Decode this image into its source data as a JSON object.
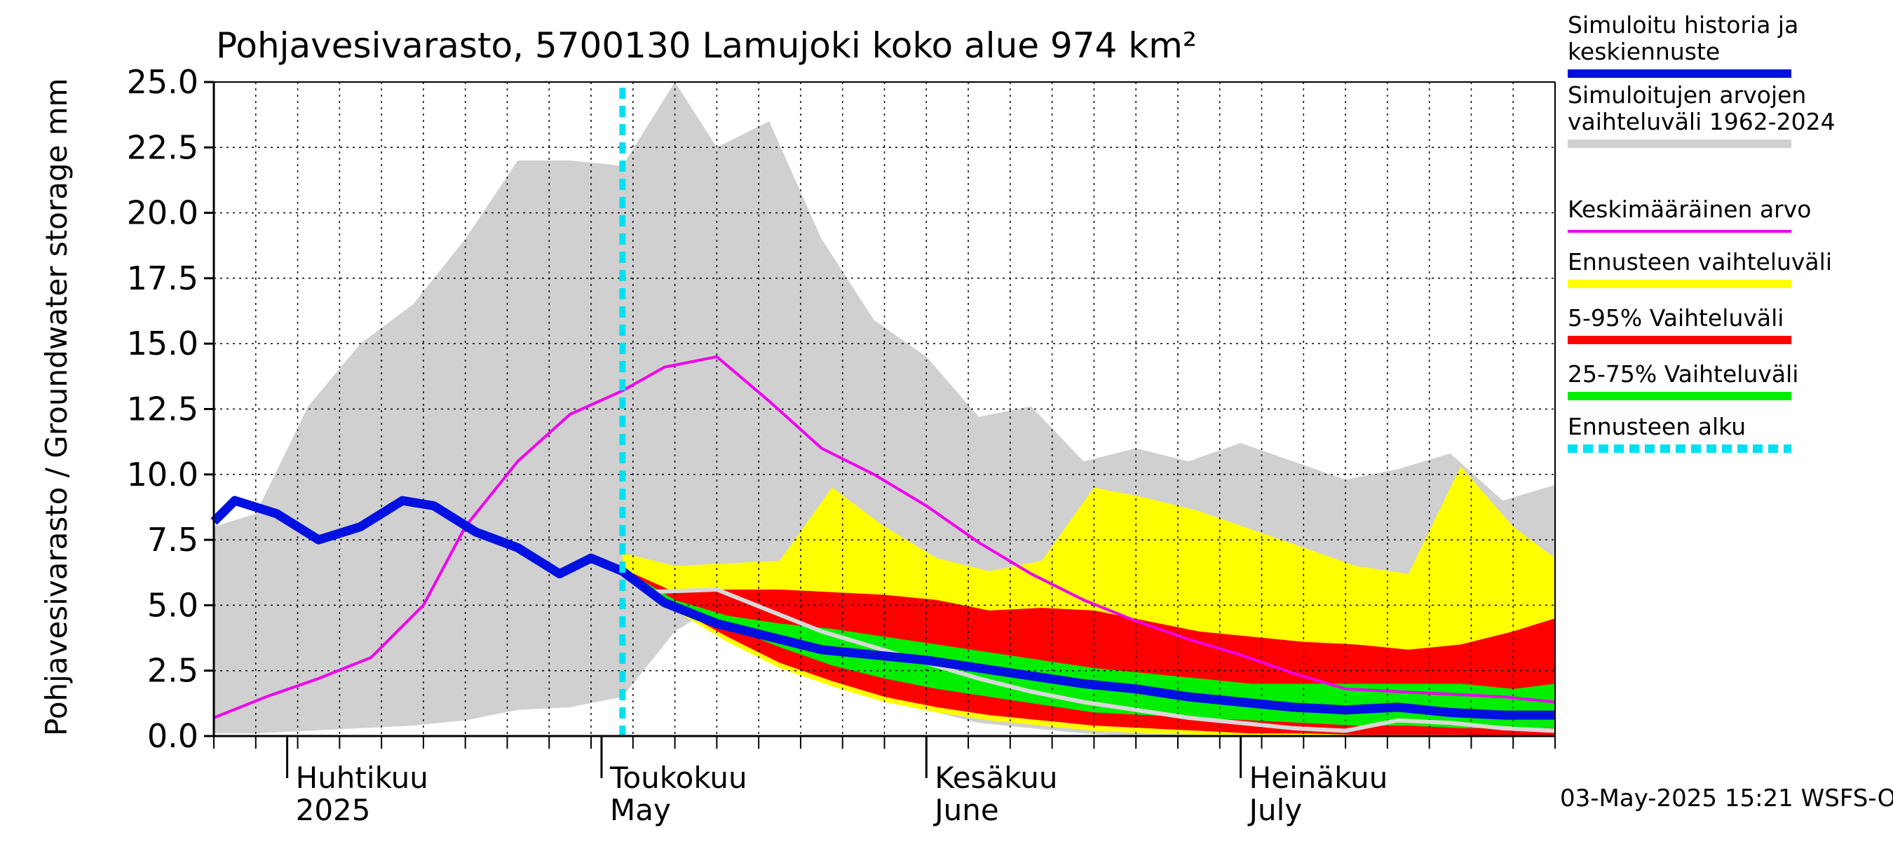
{
  "chart_data": {
    "type": "area",
    "title": "Pohjavesivarasto, 5700130 Lamujoki koko alue 974 km²",
    "ylabel": "Pohjavesivarasto / Groundwater storage   mm",
    "ylim": [
      0,
      25
    ],
    "yticks": [
      "0.0",
      "2.5",
      "5.0",
      "7.5",
      "10.0",
      "12.5",
      "15.0",
      "17.5",
      "20.0",
      "22.5",
      "25.0"
    ],
    "xlim": [
      "2025-03-25",
      "2025-07-31"
    ],
    "grid": true,
    "forecast_start": "2025-05-03",
    "timestamp": "03-May-2025 15:21 WSFS-O",
    "month_labels": [
      {
        "date": "2025-04-01",
        "fi": "Huhtikuu",
        "en": "2025"
      },
      {
        "date": "2025-05-01",
        "fi": "Toukokuu",
        "en": "May"
      },
      {
        "date": "2025-06-01",
        "fi": "Kesäkuu",
        "en": "June"
      },
      {
        "date": "2025-07-01",
        "fi": "Heinäkuu",
        "en": "July"
      }
    ],
    "legend": [
      {
        "label": "Simuloitu historia ja keskiennuste",
        "color": "#0010e0",
        "style": "thick"
      },
      {
        "label": "Simuloitujen arvojen vaihteluväli 1962-2024",
        "color": "#d0d0d0",
        "style": "thick"
      },
      {
        "label": "Keskimääräinen arvo",
        "color": "#ee00ee",
        "style": "thin"
      },
      {
        "label": "Ennusteen vaihteluväli",
        "color": "#ffff00",
        "style": "thick"
      },
      {
        "label": "5-95% Vaihteluväli",
        "color": "#ff0000",
        "style": "thick"
      },
      {
        "label": "25-75% Vaihteluväli",
        "color": "#00ee00",
        "style": "thick"
      },
      {
        "label": "Ennusteen alku",
        "color": "#00e0f0",
        "style": "dashed"
      }
    ],
    "series": {
      "historical_range": {
        "x": [
          "2025-03-25",
          "2025-03-29",
          "2025-04-03",
          "2025-04-08",
          "2025-04-13",
          "2025-04-18",
          "2025-04-23",
          "2025-04-28",
          "2025-05-03",
          "2025-05-08",
          "2025-05-12",
          "2025-05-17",
          "2025-05-22",
          "2025-05-27",
          "2025-06-01",
          "2025-06-06",
          "2025-06-11",
          "2025-06-16",
          "2025-06-21",
          "2025-06-26",
          "2025-07-01",
          "2025-07-06",
          "2025-07-11",
          "2025-07-16",
          "2025-07-21",
          "2025-07-26",
          "2025-07-31"
        ],
        "upper": [
          8.0,
          8.5,
          12.6,
          15.0,
          16.5,
          19.0,
          22.0,
          22.0,
          21.8,
          25.0,
          22.5,
          23.5,
          19.0,
          15.9,
          14.5,
          12.2,
          12.6,
          10.5,
          11.0,
          10.5,
          11.2,
          10.5,
          9.8,
          10.2,
          10.8,
          9.0,
          9.6
        ],
        "lower": [
          0.1,
          0.1,
          0.2,
          0.3,
          0.4,
          0.6,
          1.0,
          1.1,
          1.5,
          4.0,
          5.0,
          4.0,
          3.0,
          2.0,
          1.0,
          0.5,
          0.3,
          0.1,
          0.0,
          0.0,
          0.0,
          0.0,
          0.0,
          0.0,
          0.0,
          0.0,
          0.0
        ]
      },
      "mean": {
        "x": [
          "2025-03-25",
          "2025-03-30",
          "2025-04-04",
          "2025-04-09",
          "2025-04-14",
          "2025-04-18",
          "2025-04-23",
          "2025-04-28",
          "2025-05-03",
          "2025-05-07",
          "2025-05-12",
          "2025-05-17",
          "2025-05-22",
          "2025-05-27",
          "2025-06-01",
          "2025-06-06",
          "2025-06-11",
          "2025-06-16",
          "2025-06-21",
          "2025-06-26",
          "2025-07-01",
          "2025-07-06",
          "2025-07-11",
          "2025-07-16",
          "2025-07-21",
          "2025-07-26",
          "2025-07-31"
        ],
        "values": [
          0.7,
          1.5,
          2.2,
          3.0,
          5.0,
          8.0,
          10.5,
          12.3,
          13.2,
          14.1,
          14.5,
          12.8,
          11.0,
          10.0,
          8.8,
          7.4,
          6.2,
          5.2,
          4.4,
          3.7,
          3.1,
          2.4,
          1.8,
          1.7,
          1.6,
          1.5,
          1.3
        ]
      },
      "simulated_median": {
        "x": [
          "2025-03-25",
          "2025-03-27",
          "2025-03-31",
          "2025-04-04",
          "2025-04-08",
          "2025-04-12",
          "2025-04-15",
          "2025-04-19",
          "2025-04-23",
          "2025-04-27",
          "2025-04-30",
          "2025-05-03",
          "2025-05-07",
          "2025-05-12",
          "2025-05-17",
          "2025-05-22",
          "2025-05-27",
          "2025-06-01",
          "2025-06-06",
          "2025-06-11",
          "2025-06-16",
          "2025-06-21",
          "2025-06-26",
          "2025-07-01",
          "2025-07-06",
          "2025-07-11",
          "2025-07-16",
          "2025-07-21",
          "2025-07-26",
          "2025-07-31"
        ],
        "values": [
          8.2,
          9.0,
          8.5,
          7.5,
          8.0,
          9.0,
          8.8,
          7.8,
          7.2,
          6.2,
          6.8,
          6.3,
          5.1,
          4.3,
          3.8,
          3.3,
          3.1,
          2.9,
          2.6,
          2.3,
          2.0,
          1.8,
          1.5,
          1.3,
          1.1,
          1.0,
          1.1,
          0.9,
          0.8,
          0.8
        ]
      },
      "forecast_band": {
        "x": [
          "2025-05-03",
          "2025-05-08",
          "2025-05-13",
          "2025-05-18",
          "2025-05-23",
          "2025-05-28",
          "2025-06-02",
          "2025-06-07",
          "2025-06-12",
          "2025-06-17",
          "2025-06-22",
          "2025-06-27",
          "2025-07-02",
          "2025-07-07",
          "2025-07-12",
          "2025-07-17",
          "2025-07-22",
          "2025-07-27",
          "2025-07-31"
        ],
        "ff_upper": [
          7.0,
          6.5,
          6.6,
          6.7,
          9.5,
          8.0,
          6.8,
          6.3,
          6.7,
          9.5,
          9.1,
          8.6,
          7.9,
          7.2,
          6.5,
          6.2,
          10.3,
          8.0,
          6.8
        ],
        "ff_lower": [
          6.3,
          4.8,
          3.6,
          2.6,
          1.9,
          1.3,
          0.9,
          0.6,
          0.4,
          0.2,
          0.1,
          0.05,
          0.0,
          0.0,
          0.0,
          0.0,
          0.0,
          0.0,
          0.0
        ],
        "p95": [
          6.4,
          5.5,
          5.6,
          5.6,
          5.5,
          5.4,
          5.2,
          4.8,
          4.9,
          4.8,
          4.4,
          4.0,
          3.8,
          3.6,
          3.5,
          3.3,
          3.5,
          4.0,
          4.5
        ],
        "p5": [
          6.3,
          4.9,
          3.8,
          2.8,
          2.1,
          1.5,
          1.1,
          0.8,
          0.6,
          0.4,
          0.3,
          0.2,
          0.1,
          0.1,
          0.05,
          0.05,
          0.05,
          0.0,
          0.0
        ],
        "p75": [
          6.4,
          5.2,
          4.6,
          4.3,
          4.1,
          3.8,
          3.5,
          3.2,
          2.9,
          2.6,
          2.4,
          2.2,
          2.0,
          2.0,
          2.0,
          2.0,
          2.0,
          1.8,
          2.0
        ],
        "p25": [
          6.3,
          5.0,
          4.2,
          3.4,
          2.7,
          2.2,
          1.8,
          1.5,
          1.2,
          0.9,
          0.8,
          0.7,
          0.6,
          0.5,
          0.4,
          0.4,
          0.3,
          0.3,
          0.3
        ]
      },
      "other_simulation": {
        "x": [
          "2025-05-05",
          "2025-05-12",
          "2025-05-17",
          "2025-05-22",
          "2025-05-27",
          "2025-06-01",
          "2025-06-06",
          "2025-06-11",
          "2025-06-16",
          "2025-06-21",
          "2025-06-26",
          "2025-07-01",
          "2025-07-06",
          "2025-07-11",
          "2025-07-16",
          "2025-07-21",
          "2025-07-26",
          "2025-07-31"
        ],
        "values": [
          5.5,
          5.6,
          4.8,
          4.0,
          3.4,
          2.8,
          2.2,
          1.7,
          1.3,
          1.0,
          0.7,
          0.5,
          0.3,
          0.2,
          0.6,
          0.5,
          0.3,
          0.2
        ]
      }
    }
  }
}
